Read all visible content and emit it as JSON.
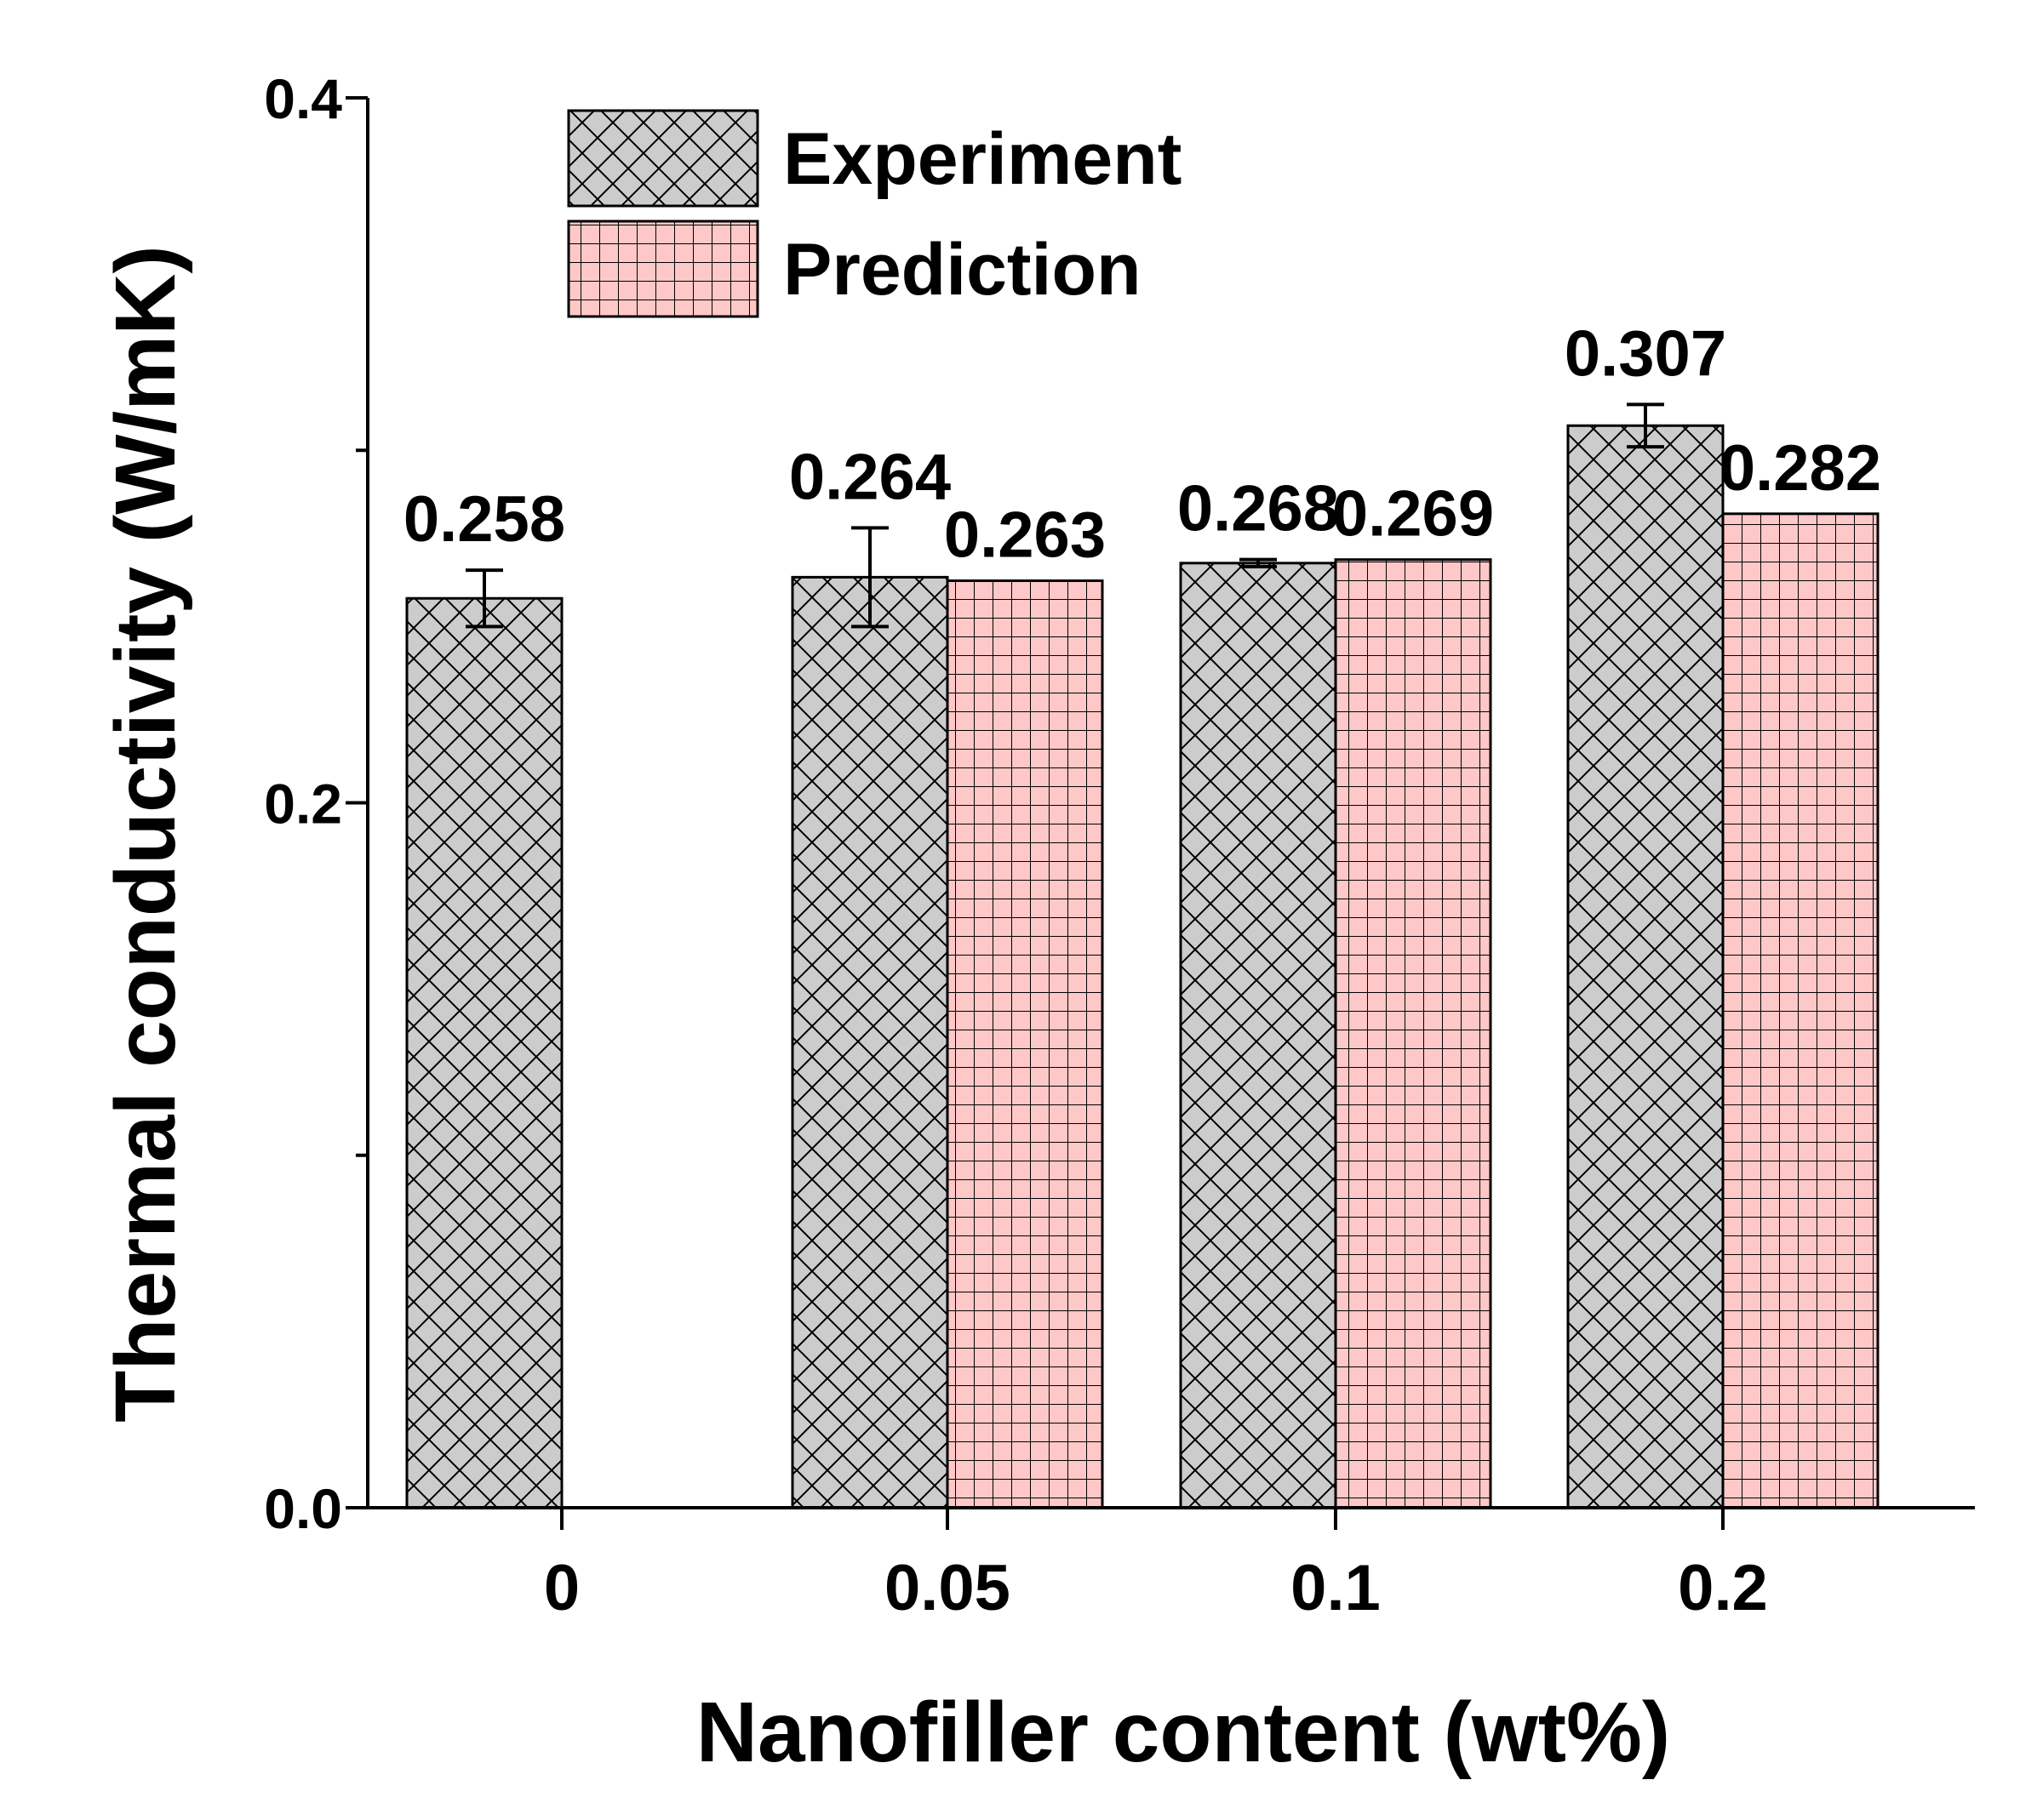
{
  "chart_data": {
    "type": "bar",
    "title": "",
    "xlabel": "Nanofiller content (wt%)",
    "ylabel": "Thermal conductivity (W/mK)",
    "categories": [
      "0",
      "0.05",
      "0.1",
      "0.2"
    ],
    "ylim": [
      0,
      0.4
    ],
    "y_ticks": [
      0.0,
      0.2,
      0.4
    ],
    "y_tick_labels": [
      "0.0",
      "0.2",
      "0.4"
    ],
    "y_minor_ticks": [
      0.1,
      0.3
    ],
    "grid": false,
    "legend_position": "top-left",
    "series": [
      {
        "name": "Experiment",
        "color": "#cccccc",
        "pattern": "crosshatch",
        "values": [
          0.258,
          0.264,
          0.268,
          0.307
        ],
        "value_labels": [
          "0.258",
          "0.264",
          "0.268",
          "0.307"
        ],
        "errors": [
          0.008,
          0.014,
          0.001,
          0.006
        ]
      },
      {
        "name": "Prediction",
        "color": "#ffc8c8",
        "pattern": "grid",
        "values": [
          null,
          0.263,
          0.269,
          0.282
        ],
        "value_labels": [
          null,
          "0.263",
          "0.269",
          "0.282"
        ]
      }
    ]
  }
}
